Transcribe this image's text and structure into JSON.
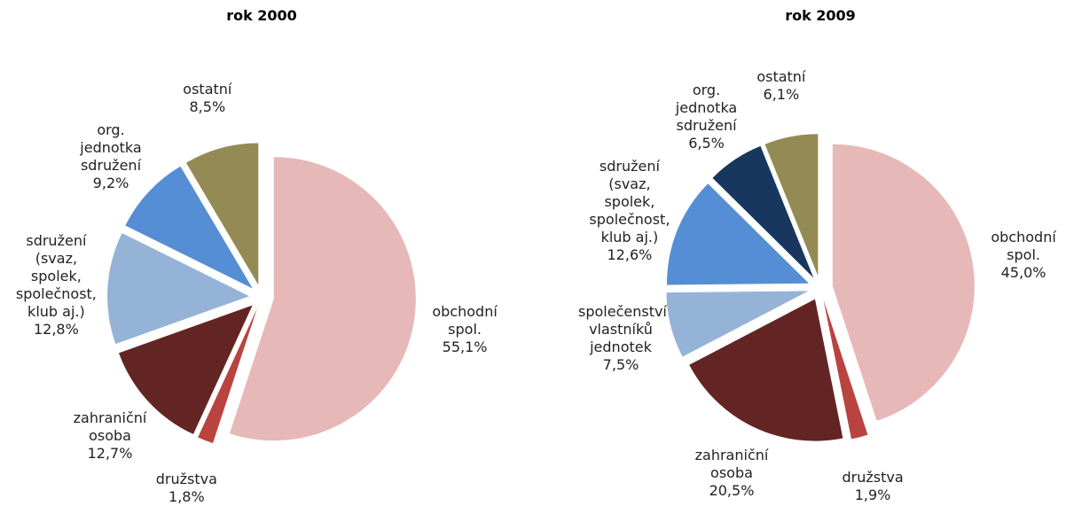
{
  "chart_data": [
    {
      "type": "pie",
      "title": "rok 2000",
      "categories": [
        "obchodní spol.",
        "družstva",
        "zahraniční osoba",
        "sdružení (svaz, spolek, společnost, klub aj.)",
        "org. jednotka sdružení",
        "ostatní"
      ],
      "values": [
        55.1,
        1.8,
        12.7,
        12.8,
        9.2,
        8.5
      ],
      "value_labels": [
        "55,1%",
        "1,8%",
        "12,7%",
        "12,8%",
        "9,2%",
        "8,5%"
      ],
      "colors": [
        "#e6b8b7",
        "#b9433f",
        "#632523",
        "#95b3d7",
        "#558ed5",
        "#948a54"
      ]
    },
    {
      "type": "pie",
      "title": "rok 2009",
      "categories": [
        "obchodní spol.",
        "družstva",
        "zahraniční osoba",
        "společenství vlastníků jednotek",
        "sdružení (svaz, spolek, společnost, klub aj.)",
        "org. jednotka sdružení",
        "ostatní"
      ],
      "values": [
        45.0,
        1.9,
        20.5,
        7.5,
        12.6,
        6.5,
        6.1
      ],
      "value_labels": [
        "45,0%",
        "1,9%",
        "20,5%",
        "7,5%",
        "12,6%",
        "6,5%",
        "6,1%"
      ],
      "colors": [
        "#e6b8b7",
        "#b9433f",
        "#632523",
        "#95b3d7",
        "#558ed5",
        "#17375e",
        "#948a54"
      ]
    }
  ]
}
